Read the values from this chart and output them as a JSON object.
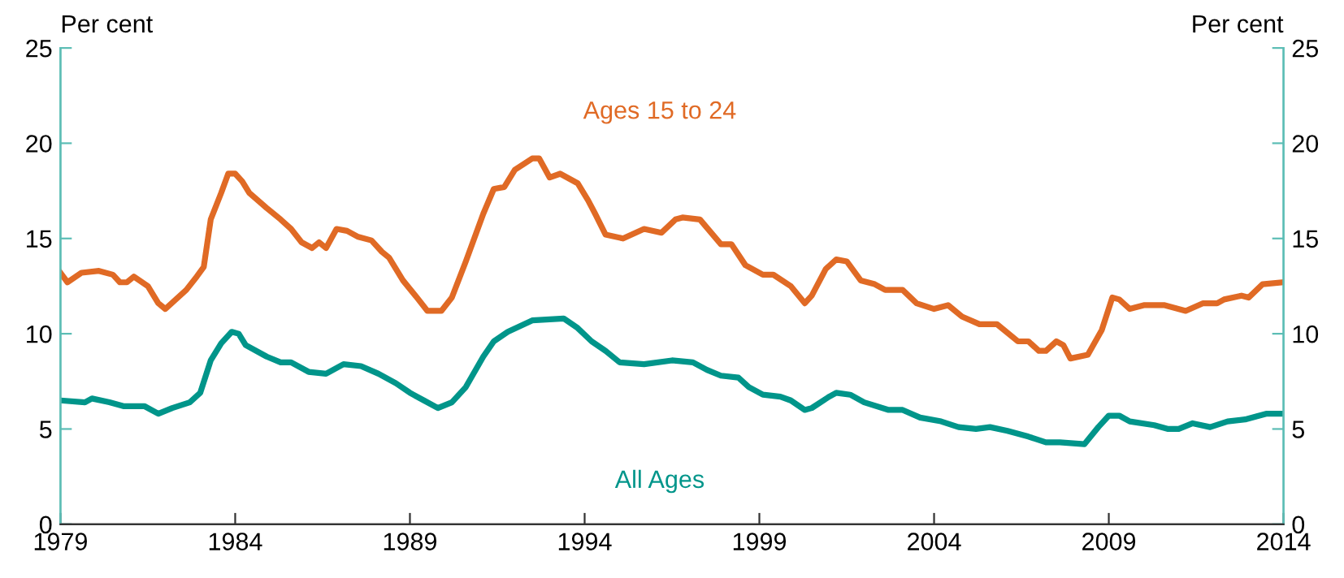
{
  "chart_data": {
    "type": "line",
    "ylabel": "Per cent",
    "y2label": "Per cent",
    "xlim": [
      1979,
      2014
    ],
    "xticks": [
      1979,
      1984,
      1989,
      1994,
      1999,
      2004,
      2009,
      2014
    ],
    "ylim": [
      0,
      25
    ],
    "yticks": [
      0,
      5,
      10,
      15,
      20,
      25
    ],
    "y2lim": [
      0,
      25
    ],
    "y2ticks": [
      0,
      5,
      10,
      15,
      20,
      25
    ],
    "grid": false,
    "legend": false,
    "marker": "none",
    "line_style": "solid",
    "series": [
      {
        "name": "Ages 15 to 24",
        "color": "#e06a25",
        "x": [
          1979.0,
          1979.2,
          1979.6,
          1980.1,
          1980.5,
          1980.7,
          1980.9,
          1981.1,
          1981.5,
          1981.8,
          1982.0,
          1982.3,
          1982.6,
          1982.9,
          1983.1,
          1983.3,
          1983.6,
          1983.8,
          1984.0,
          1984.2,
          1984.4,
          1984.9,
          1985.3,
          1985.6,
          1985.9,
          1986.2,
          1986.4,
          1986.6,
          1986.9,
          1987.2,
          1987.5,
          1987.9,
          1988.2,
          1988.4,
          1988.8,
          1989.2,
          1989.5,
          1989.9,
          1990.2,
          1990.6,
          1991.1,
          1991.4,
          1991.7,
          1992.0,
          1992.5,
          1992.7,
          1993.0,
          1993.3,
          1993.8,
          1994.1,
          1994.3,
          1994.6,
          1995.1,
          1995.7,
          1996.2,
          1996.6,
          1996.8,
          1997.3,
          1997.9,
          1998.2,
          1998.6,
          1999.1,
          1999.4,
          1999.9,
          2000.3,
          2000.5,
          2000.9,
          2001.2,
          2001.5,
          2001.9,
          2002.3,
          2002.6,
          2003.1,
          2003.5,
          2004.0,
          2004.4,
          2004.8,
          2005.3,
          2005.8,
          2006.4,
          2006.7,
          2007.0,
          2007.2,
          2007.5,
          2007.7,
          2007.9,
          2008.4,
          2008.8,
          2009.1,
          2009.3,
          2009.6,
          2010.0,
          2010.6,
          2011.2,
          2011.7,
          2012.1,
          2012.3,
          2012.8,
          2013.0,
          2013.4,
          2014.0
        ],
        "values": [
          13.2,
          12.7,
          13.2,
          13.3,
          13.1,
          12.7,
          12.7,
          13.0,
          12.5,
          11.6,
          11.3,
          11.8,
          12.3,
          13.0,
          13.5,
          16.0,
          17.4,
          18.4,
          18.4,
          18.0,
          17.4,
          16.6,
          16.0,
          15.5,
          14.8,
          14.5,
          14.8,
          14.5,
          15.5,
          15.4,
          15.1,
          14.9,
          14.3,
          14.0,
          12.8,
          11.9,
          11.2,
          11.2,
          11.9,
          13.8,
          16.3,
          17.6,
          17.7,
          18.6,
          19.2,
          19.2,
          18.2,
          18.4,
          17.9,
          17.0,
          16.3,
          15.2,
          15.0,
          15.5,
          15.3,
          16.0,
          16.1,
          16.0,
          14.7,
          14.7,
          13.6,
          13.1,
          13.1,
          12.5,
          11.6,
          12.0,
          13.4,
          13.9,
          13.8,
          12.8,
          12.6,
          12.3,
          12.3,
          11.6,
          11.3,
          11.5,
          10.9,
          10.5,
          10.5,
          9.6,
          9.6,
          9.1,
          9.1,
          9.6,
          9.4,
          8.7,
          8.9,
          10.2,
          11.9,
          11.8,
          11.3,
          11.5,
          11.5,
          11.2,
          11.6,
          11.6,
          11.8,
          12.0,
          11.9,
          12.6,
          12.7
        ]
      },
      {
        "name": "All Ages",
        "color": "#00958a",
        "x": [
          1979.0,
          1979.7,
          1979.9,
          1980.4,
          1980.8,
          1981.4,
          1981.8,
          1982.2,
          1982.7,
          1983.0,
          1983.3,
          1983.6,
          1983.9,
          1984.1,
          1984.3,
          1984.9,
          1985.3,
          1985.6,
          1986.1,
          1986.6,
          1987.1,
          1987.6,
          1988.1,
          1988.6,
          1989.0,
          1989.4,
          1989.8,
          1990.2,
          1990.6,
          1991.1,
          1991.4,
          1991.8,
          1992.5,
          1993.4,
          1993.8,
          1994.2,
          1994.6,
          1995.0,
          1995.7,
          1996.5,
          1997.1,
          1997.5,
          1997.9,
          1998.4,
          1998.7,
          1999.1,
          1999.6,
          1999.9,
          2000.3,
          2000.5,
          2001.0,
          2001.2,
          2001.6,
          2002.0,
          2002.7,
          2003.1,
          2003.6,
          2004.2,
          2004.7,
          2005.2,
          2005.6,
          2006.1,
          2006.7,
          2007.2,
          2007.6,
          2008.3,
          2008.7,
          2009.0,
          2009.3,
          2009.6,
          2010.3,
          2010.7,
          2011.0,
          2011.4,
          2011.9,
          2012.4,
          2012.9,
          2013.5,
          2014.0
        ],
        "values": [
          6.5,
          6.4,
          6.6,
          6.4,
          6.2,
          6.2,
          5.8,
          6.1,
          6.4,
          6.9,
          8.6,
          9.5,
          10.1,
          10.0,
          9.4,
          8.8,
          8.5,
          8.5,
          8.0,
          7.9,
          8.4,
          8.3,
          7.9,
          7.4,
          6.9,
          6.5,
          6.1,
          6.4,
          7.2,
          8.8,
          9.6,
          10.1,
          10.7,
          10.8,
          10.3,
          9.6,
          9.1,
          8.5,
          8.4,
          8.6,
          8.5,
          8.1,
          7.8,
          7.7,
          7.2,
          6.8,
          6.7,
          6.5,
          6.0,
          6.1,
          6.7,
          6.9,
          6.8,
          6.4,
          6.0,
          6.0,
          5.6,
          5.4,
          5.1,
          5.0,
          5.1,
          4.9,
          4.6,
          4.3,
          4.3,
          4.2,
          5.1,
          5.7,
          5.7,
          5.4,
          5.2,
          5.0,
          5.0,
          5.3,
          5.1,
          5.4,
          5.5,
          5.8,
          5.8
        ]
      }
    ]
  }
}
